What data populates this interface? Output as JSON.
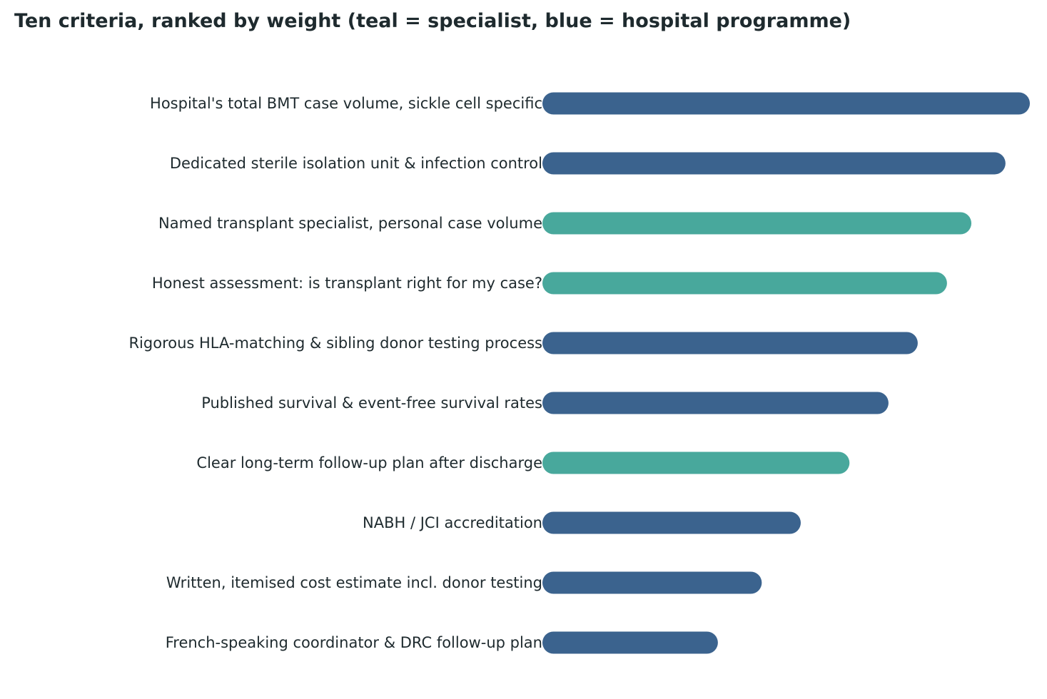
{
  "chart_data": {
    "type": "bar",
    "orientation": "horizontal",
    "title": "Ten criteria, ranked by weight (teal = specialist, blue = hospital programme)",
    "xlabel": "",
    "ylabel": "",
    "grid": false,
    "axes_visible": false,
    "xlim": [
      0,
      10
    ],
    "categories": [
      "Hospital's total BMT case volume, sickle cell specific",
      "Dedicated sterile isolation unit & infection control",
      "Named transplant specialist, personal case volume",
      "Honest assessment: is transplant right for my case?",
      "Rigorous HLA-matching & sibling donor testing process",
      "Published survival & event-free survival rates",
      "Clear long-term follow-up plan after discharge",
      "NABH / JCI accreditation",
      "Written, itemised cost estimate incl. donor testing",
      "French-speaking coordinator & DRC follow-up plan"
    ],
    "values": [
      10,
      9.5,
      8.8,
      8.3,
      7.7,
      7.1,
      6.3,
      5.3,
      4.5,
      3.6
    ],
    "groups": [
      "hospital",
      "hospital",
      "specialist",
      "specialist",
      "hospital",
      "hospital",
      "specialist",
      "hospital",
      "hospital",
      "hospital"
    ],
    "colors": {
      "specialist": "#48a89c",
      "hospital": "#3b638e"
    }
  }
}
